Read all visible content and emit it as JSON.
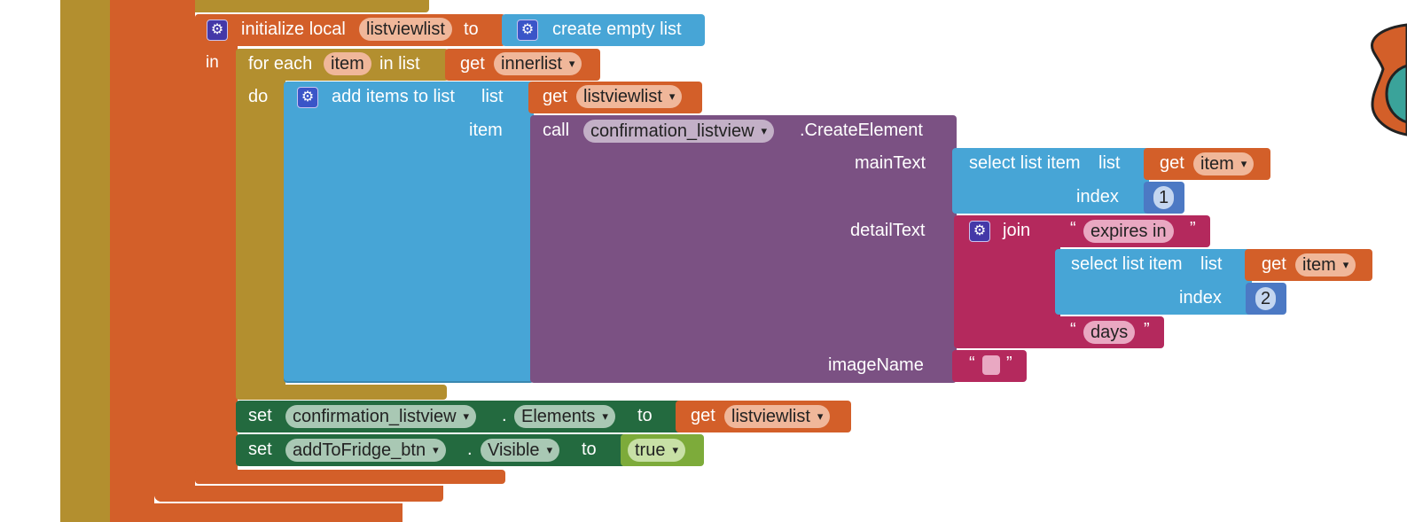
{
  "colors": {
    "procedure_orange": "#d35f29",
    "control_olive": "#b38f2f",
    "list_blue": "#47a5d6",
    "component_purple": "#7b5183",
    "text_magenta": "#b4295d",
    "setter_green": "#236a3f",
    "logic_green": "#7dab3a",
    "math_blue": "#4c79c4"
  },
  "init_local": {
    "prefix": "initialize local",
    "var": "listviewlist",
    "to": "to",
    "in": "in",
    "value_block": "create empty list"
  },
  "for_each": {
    "label": "for each",
    "var": "item",
    "in_list": "in list",
    "do": "do",
    "get": "get",
    "list_var": "innerlist"
  },
  "add_items": {
    "label": "add items to list",
    "list_label": "list",
    "item_label": "item",
    "get": "get",
    "list_var": "listviewlist"
  },
  "create_element": {
    "call": "call",
    "component": "confirmation_listview",
    "method": ".CreateElement",
    "main_text": "mainText",
    "detail_text": "detailText",
    "image_name": "imageName"
  },
  "select_main": {
    "label": "select list item",
    "list_label": "list",
    "index_label": "index",
    "get": "get",
    "var": "item",
    "index": "1"
  },
  "join": {
    "label": "join",
    "text1": "expires in",
    "text2": "days",
    "open_quote": "“",
    "close_quote": "”"
  },
  "select_detail": {
    "label": "select list item",
    "list_label": "list",
    "index_label": "index",
    "get": "get",
    "var": "item",
    "index": "2"
  },
  "image_text": {
    "value": ""
  },
  "set_elements": {
    "set": "set",
    "component": "confirmation_listview",
    "dot": ".",
    "property": "Elements",
    "to": "to",
    "get": "get",
    "var": "listviewlist"
  },
  "set_visible": {
    "set": "set",
    "component": "addToFridge_btn",
    "dot": ".",
    "property": "Visible",
    "to": "to",
    "value": "true"
  }
}
